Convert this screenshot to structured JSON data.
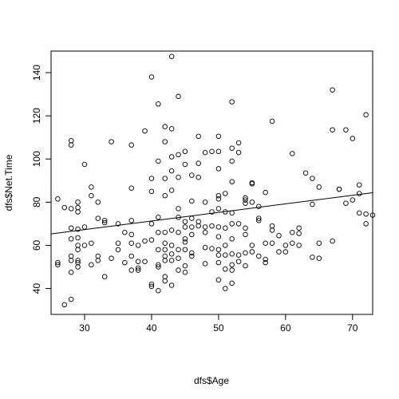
{
  "chart_data": {
    "type": "scatter",
    "title": "",
    "xlabel": "dfs$Age",
    "ylabel": "dfs$Net.Time",
    "xlim": [
      25,
      73
    ],
    "ylim": [
      28,
      150
    ],
    "x_ticks": [
      30,
      40,
      50,
      60,
      70
    ],
    "y_ticks": [
      40,
      60,
      80,
      100,
      120,
      140
    ],
    "grid": false,
    "legend": "none",
    "point_style": "open-circle",
    "trend_line": {
      "x": [
        25,
        73
      ],
      "y": [
        65.3,
        84.4
      ]
    },
    "points": [
      [
        26,
        81.5
      ],
      [
        26,
        52
      ],
      [
        26,
        51
      ],
      [
        27,
        77.5
      ],
      [
        27,
        32.5
      ],
      [
        28,
        108.5
      ],
      [
        28,
        106.5
      ],
      [
        28,
        77
      ],
      [
        28,
        68
      ],
      [
        28,
        63
      ],
      [
        28,
        55
      ],
      [
        28,
        53
      ],
      [
        28,
        47.5
      ],
      [
        28,
        35
      ],
      [
        29,
        80
      ],
      [
        29,
        77.5
      ],
      [
        29,
        75.5
      ],
      [
        29,
        67.5
      ],
      [
        29,
        63.5
      ],
      [
        29,
        60
      ],
      [
        29,
        58
      ],
      [
        29,
        53
      ],
      [
        29,
        52
      ],
      [
        29,
        50
      ],
      [
        30,
        97.5
      ],
      [
        30,
        68.5
      ],
      [
        30,
        60
      ],
      [
        31,
        87
      ],
      [
        31,
        83
      ],
      [
        31,
        61
      ],
      [
        31,
        51
      ],
      [
        32,
        80
      ],
      [
        32,
        72.5
      ],
      [
        32,
        55
      ],
      [
        32,
        53
      ],
      [
        33,
        71.5
      ],
      [
        33,
        70.5
      ],
      [
        33,
        45.5
      ],
      [
        34,
        108
      ],
      [
        34,
        54
      ],
      [
        35,
        70
      ],
      [
        35,
        61
      ],
      [
        35,
        58
      ],
      [
        36,
        66
      ],
      [
        36,
        52
      ],
      [
        37,
        106.5
      ],
      [
        37,
        86.5
      ],
      [
        37,
        71.5
      ],
      [
        37,
        65
      ],
      [
        37,
        61
      ],
      [
        37,
        55
      ],
      [
        37,
        48.5
      ],
      [
        38,
        60
      ],
      [
        38,
        52.5
      ],
      [
        38,
        49.5
      ],
      [
        38,
        48.5
      ],
      [
        39,
        113
      ],
      [
        39,
        62
      ],
      [
        39,
        52.5
      ],
      [
        40,
        138
      ],
      [
        40,
        91
      ],
      [
        40,
        85
      ],
      [
        40,
        70
      ],
      [
        40,
        62.5
      ],
      [
        40,
        42
      ],
      [
        40,
        41
      ],
      [
        41,
        125.5
      ],
      [
        41,
        99
      ],
      [
        41,
        73
      ],
      [
        41,
        66
      ],
      [
        41,
        58
      ],
      [
        41,
        51
      ],
      [
        41,
        50
      ],
      [
        41,
        39
      ],
      [
        42,
        115
      ],
      [
        42,
        108
      ],
      [
        42,
        91
      ],
      [
        42,
        83
      ],
      [
        42,
        66
      ],
      [
        42,
        61
      ],
      [
        42,
        58
      ],
      [
        42,
        55
      ],
      [
        42,
        53
      ],
      [
        42,
        45.5
      ],
      [
        42,
        43.5
      ],
      [
        43,
        147.5
      ],
      [
        43,
        114
      ],
      [
        43,
        101
      ],
      [
        43,
        94.5
      ],
      [
        43,
        85.5
      ],
      [
        43,
        67
      ],
      [
        43,
        60
      ],
      [
        43,
        56
      ],
      [
        43,
        53
      ],
      [
        43,
        41.5
      ],
      [
        44,
        129
      ],
      [
        44,
        102
      ],
      [
        44,
        91.5
      ],
      [
        44,
        77
      ],
      [
        44,
        73
      ],
      [
        44,
        66
      ],
      [
        44,
        58
      ],
      [
        44,
        54
      ],
      [
        44,
        48.5
      ],
      [
        45,
        103.5
      ],
      [
        45,
        97.5
      ],
      [
        45,
        71
      ],
      [
        45,
        68.5
      ],
      [
        45,
        63
      ],
      [
        45,
        61.5
      ],
      [
        45,
        58
      ],
      [
        45,
        50.5
      ],
      [
        45,
        47.5
      ],
      [
        46,
        92.5
      ],
      [
        46,
        80.5
      ],
      [
        46,
        72.5
      ],
      [
        46,
        68.5
      ],
      [
        46,
        65
      ],
      [
        46,
        56.5
      ],
      [
        46,
        55
      ],
      [
        47,
        110.5
      ],
      [
        47,
        98
      ],
      [
        47,
        91.5
      ],
      [
        47,
        71
      ],
      [
        47,
        69
      ],
      [
        48,
        103
      ],
      [
        48,
        80
      ],
      [
        48,
        68.5
      ],
      [
        48,
        66
      ],
      [
        48,
        59
      ],
      [
        48,
        51.5
      ],
      [
        49,
        103.5
      ],
      [
        49,
        75.5
      ],
      [
        49,
        69
      ],
      [
        49,
        58.5
      ],
      [
        50,
        110.5
      ],
      [
        50,
        103.5
      ],
      [
        50,
        95.5
      ],
      [
        50,
        83
      ],
      [
        50,
        81.5
      ],
      [
        50,
        77
      ],
      [
        50,
        68.5
      ],
      [
        50,
        64
      ],
      [
        50,
        58
      ],
      [
        50,
        55.5
      ],
      [
        50,
        52
      ],
      [
        50,
        44
      ],
      [
        51,
        84
      ],
      [
        51,
        75.5
      ],
      [
        51,
        68
      ],
      [
        51,
        60
      ],
      [
        51,
        55.5
      ],
      [
        51,
        49
      ],
      [
        51,
        40
      ],
      [
        52,
        126.5
      ],
      [
        52,
        105
      ],
      [
        52,
        99
      ],
      [
        52,
        89.5
      ],
      [
        52,
        75
      ],
      [
        52,
        70
      ],
      [
        52,
        63
      ],
      [
        52,
        56
      ],
      [
        52,
        51
      ],
      [
        52,
        48.5
      ],
      [
        52,
        42.5
      ],
      [
        53,
        107.5
      ],
      [
        53,
        103
      ],
      [
        53,
        70
      ],
      [
        53,
        55.5
      ],
      [
        53,
        52.5
      ],
      [
        54,
        82
      ],
      [
        54,
        81
      ],
      [
        54,
        79.5
      ],
      [
        54,
        68
      ],
      [
        54,
        65
      ],
      [
        54,
        56.5
      ],
      [
        54,
        50.5
      ],
      [
        55,
        89
      ],
      [
        55,
        88.5
      ],
      [
        55,
        80
      ],
      [
        55,
        60
      ],
      [
        55,
        57
      ],
      [
        56,
        78
      ],
      [
        56,
        72.5
      ],
      [
        56,
        71.5
      ],
      [
        56,
        55
      ],
      [
        57,
        84.5
      ],
      [
        57,
        61
      ],
      [
        57,
        53.5
      ],
      [
        57,
        52
      ],
      [
        58,
        117.5
      ],
      [
        58,
        69
      ],
      [
        58,
        67
      ],
      [
        58,
        61
      ],
      [
        59,
        64.5
      ],
      [
        59,
        57
      ],
      [
        60,
        60
      ],
      [
        60,
        57
      ],
      [
        61,
        102.5
      ],
      [
        61,
        66
      ],
      [
        61,
        61
      ],
      [
        62,
        68
      ],
      [
        62,
        65.5
      ],
      [
        62,
        60
      ],
      [
        63,
        93.5
      ],
      [
        64,
        91
      ],
      [
        64,
        54.5
      ],
      [
        64,
        79
      ],
      [
        65,
        87
      ],
      [
        65,
        61
      ],
      [
        65,
        54
      ],
      [
        67,
        132
      ],
      [
        67,
        113.5
      ],
      [
        67,
        62
      ],
      [
        68,
        86
      ],
      [
        68,
        86
      ],
      [
        69,
        113.5
      ],
      [
        69,
        79.5
      ],
      [
        70,
        109.5
      ],
      [
        70,
        81
      ],
      [
        71,
        88
      ],
      [
        71,
        84
      ],
      [
        71,
        75
      ],
      [
        72,
        120.5
      ],
      [
        72,
        74.5
      ],
      [
        72,
        70
      ],
      [
        73,
        74
      ]
    ]
  }
}
